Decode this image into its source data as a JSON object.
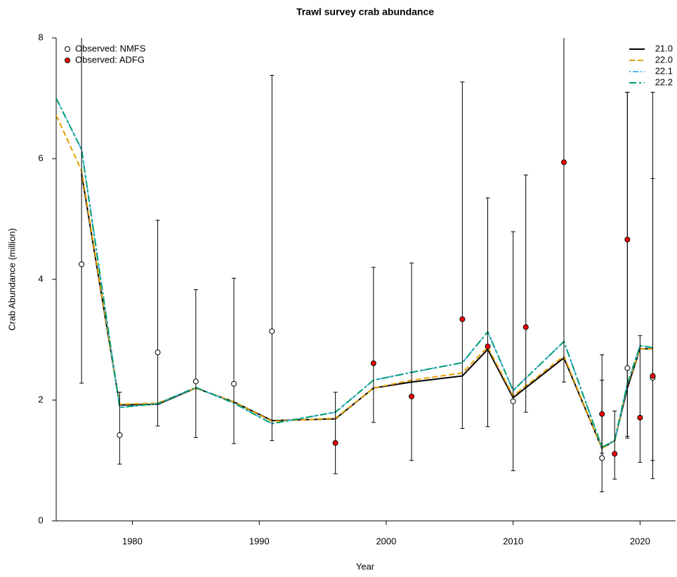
{
  "chart_data": {
    "type": "line",
    "title": "Trawl survey crab abundance",
    "x_label": "Year",
    "y_label": "Crab Abundance (million)",
    "xlim": [
      1974,
      2022.8
    ],
    "ylim": [
      0,
      8
    ],
    "xticks": [
      1980,
      1990,
      2000,
      2010,
      2020
    ],
    "yticks": [
      0,
      2,
      4,
      6,
      8
    ],
    "x": [
      1974,
      1976,
      1979,
      1982,
      1985,
      1988,
      1991,
      1996,
      1999,
      2002,
      2006,
      2008,
      2010,
      2014,
      2017,
      2018,
      2019,
      2020,
      2021
    ],
    "series": [
      {
        "name": "21.0",
        "color": "#000000",
        "dash": "solid",
        "values": [
          null,
          5.75,
          1.92,
          1.93,
          2.2,
          1.97,
          1.66,
          1.69,
          2.2,
          2.3,
          2.4,
          2.84,
          2.04,
          2.7,
          1.2,
          1.33,
          2.2,
          2.85,
          2.85
        ]
      },
      {
        "name": "22.0",
        "color": "#e69f00",
        "dash": "dashed",
        "values": [
          6.72,
          5.8,
          1.93,
          1.95,
          2.2,
          1.97,
          1.65,
          1.7,
          2.2,
          2.33,
          2.45,
          2.88,
          2.07,
          2.73,
          1.2,
          1.33,
          2.25,
          2.85,
          2.85
        ]
      },
      {
        "name": "22.1",
        "color": "#56b4e9",
        "dash": "dotdash",
        "values": [
          7.0,
          6.15,
          1.88,
          1.94,
          2.21,
          1.95,
          1.61,
          1.8,
          2.33,
          2.46,
          2.62,
          3.13,
          2.16,
          2.97,
          1.22,
          1.33,
          2.27,
          2.9,
          2.87
        ]
      },
      {
        "name": "22.2",
        "color": "#009e73",
        "dash": "dashdot",
        "values": [
          7.0,
          6.15,
          1.88,
          1.94,
          2.21,
          1.95,
          1.61,
          1.8,
          2.33,
          2.46,
          2.62,
          3.13,
          2.16,
          2.97,
          1.22,
          1.33,
          2.27,
          2.9,
          2.87
        ]
      }
    ],
    "observed": [
      {
        "name": "Observed: NMFS",
        "color": "#ffffff",
        "x": [
          1976,
          1979,
          1982,
          1985,
          1988,
          1991,
          2010,
          2017,
          2019,
          2021
        ],
        "values": [
          4.25,
          1.42,
          2.79,
          2.31,
          2.27,
          3.14,
          1.98,
          1.04,
          2.53,
          2.37
        ],
        "lower": [
          2.28,
          0.94,
          1.57,
          1.38,
          1.28,
          1.33,
          0.83,
          0.48,
          1.37,
          1.0
        ],
        "upper": [
          9.0,
          2.13,
          4.98,
          3.83,
          4.02,
          7.38,
          4.79,
          2.33,
          7.1,
          5.67
        ]
      },
      {
        "name": "Observed: ADFG",
        "color": "#ff0000",
        "x": [
          1996,
          1999,
          2002,
          2006,
          2008,
          2011,
          2014,
          2017,
          2018,
          2019,
          2020,
          2021
        ],
        "values": [
          1.29,
          2.61,
          2.06,
          3.34,
          2.89,
          3.21,
          5.94,
          1.77,
          1.11,
          4.66,
          1.71,
          2.4
        ],
        "lower": [
          0.78,
          1.63,
          1.0,
          1.53,
          1.56,
          1.8,
          2.3,
          1.12,
          0.69,
          1.4,
          0.97,
          0.7
        ],
        "upper": [
          2.13,
          4.2,
          4.27,
          7.27,
          5.35,
          5.73,
          9.5,
          2.75,
          1.82,
          7.1,
          3.07,
          7.1
        ]
      }
    ]
  }
}
